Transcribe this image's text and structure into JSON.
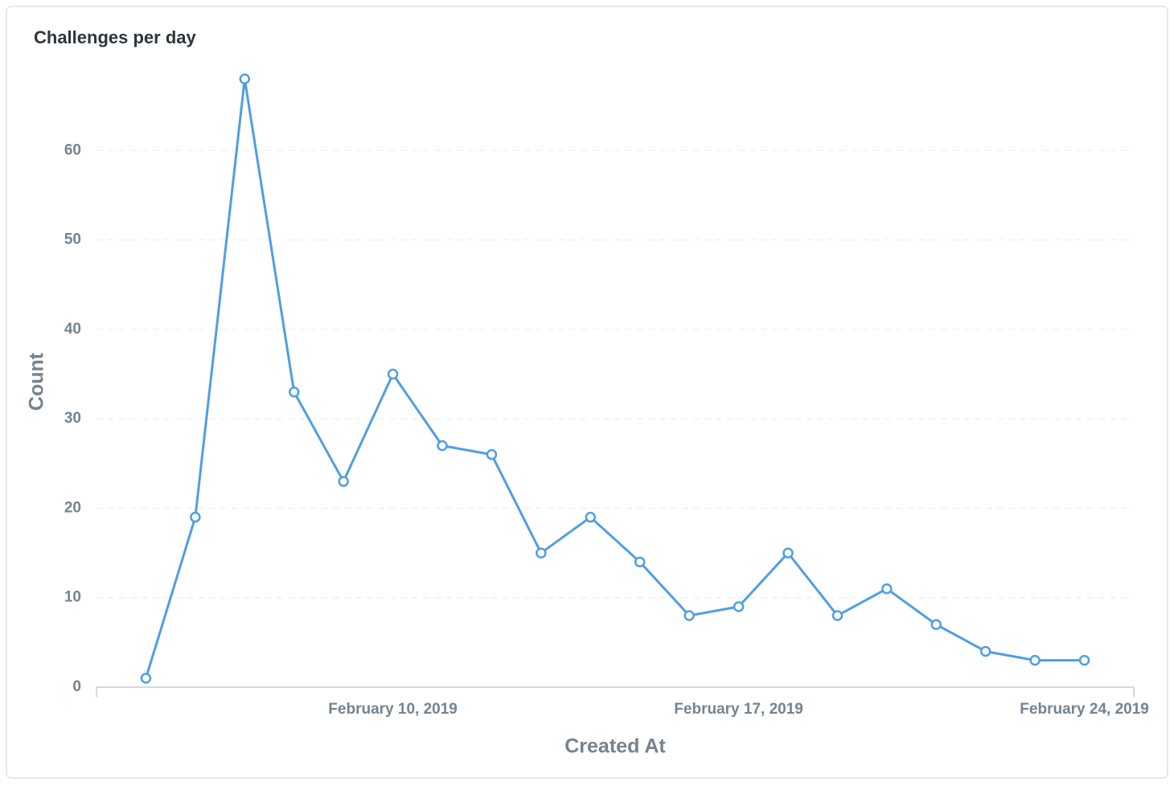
{
  "chart_data": {
    "type": "line",
    "title": "Challenges per day",
    "x_label": "Created At",
    "y_label": "Count",
    "x": [
      "2019-02-05",
      "2019-02-06",
      "2019-02-07",
      "2019-02-08",
      "2019-02-09",
      "2019-02-10",
      "2019-02-11",
      "2019-02-12",
      "2019-02-13",
      "2019-02-14",
      "2019-02-15",
      "2019-02-16",
      "2019-02-17",
      "2019-02-18",
      "2019-02-19",
      "2019-02-20",
      "2019-02-21",
      "2019-02-22",
      "2019-02-23",
      "2019-02-24"
    ],
    "series": [
      {
        "name": "Count",
        "color": "#509ee3",
        "values": [
          1,
          19,
          68,
          33,
          23,
          35,
          27,
          26,
          15,
          19,
          14,
          8,
          9,
          15,
          8,
          11,
          7,
          4,
          3,
          3
        ]
      }
    ],
    "xlim": [
      "2019-02-04",
      "2019-02-25"
    ],
    "xticks": [
      {
        "value": "2019-02-10",
        "label": "February 10, 2019"
      },
      {
        "value": "2019-02-17",
        "label": "February 17, 2019"
      },
      {
        "value": "2019-02-24",
        "label": "February 24, 2019"
      }
    ],
    "ylim": [
      0,
      70
    ],
    "yticks": [
      0,
      10,
      20,
      30,
      40,
      50,
      60
    ],
    "grid": true
  }
}
